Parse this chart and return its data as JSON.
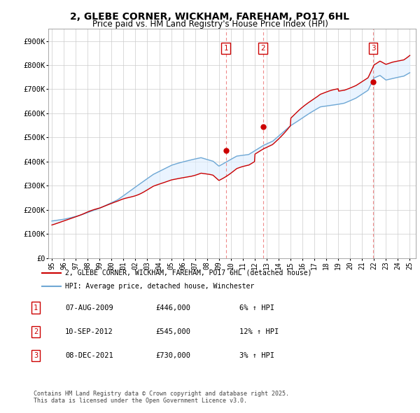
{
  "title": "2, GLEBE CORNER, WICKHAM, FAREHAM, PO17 6HL",
  "subtitle": "Price paid vs. HM Land Registry's House Price Index (HPI)",
  "ylim": [
    0,
    950000
  ],
  "yticks": [
    0,
    100000,
    200000,
    300000,
    400000,
    500000,
    600000,
    700000,
    800000,
    900000
  ],
  "ytick_labels": [
    "£0",
    "£100K",
    "£200K",
    "£300K",
    "£400K",
    "£500K",
    "£600K",
    "£700K",
    "£800K",
    "£900K"
  ],
  "hpi_color": "#6fa8d4",
  "hpi_fill_color": "#ddeeff",
  "price_color": "#cc0000",
  "sale_marker_color": "#cc0000",
  "annotation_box_color": "#cc0000",
  "vline_color": "#ee8888",
  "background_color": "#ffffff",
  "grid_color": "#cccccc",
  "sales": [
    {
      "date_num": 2009.58,
      "price": 446000,
      "label": "1"
    },
    {
      "date_num": 2012.7,
      "price": 545000,
      "label": "2"
    },
    {
      "date_num": 2021.92,
      "price": 730000,
      "label": "3"
    }
  ],
  "legend_property_label": "2, GLEBE CORNER, WICKHAM, FAREHAM, PO17 6HL (detached house)",
  "legend_hpi_label": "HPI: Average price, detached house, Winchester",
  "table_rows": [
    {
      "num": "1",
      "date": "07-AUG-2009",
      "price": "£446,000",
      "change": "6% ↑ HPI"
    },
    {
      "num": "2",
      "date": "10-SEP-2012",
      "price": "£545,000",
      "change": "12% ↑ HPI"
    },
    {
      "num": "3",
      "date": "08-DEC-2021",
      "price": "£730,000",
      "change": "3% ↑ HPI"
    }
  ],
  "footer": "Contains HM Land Registry data © Crown copyright and database right 2025.\nThis data is licensed under the Open Government Licence v3.0.",
  "xtick_years": [
    1995,
    1996,
    1997,
    1998,
    1999,
    2000,
    2001,
    2002,
    2003,
    2004,
    2005,
    2006,
    2007,
    2008,
    2009,
    2010,
    2011,
    2012,
    2013,
    2014,
    2015,
    2016,
    2017,
    2018,
    2019,
    2020,
    2021,
    2022,
    2023,
    2024,
    2025
  ],
  "xtick_labels": [
    "95",
    "96",
    "97",
    "98",
    "99",
    "00",
    "01",
    "02",
    "03",
    "04",
    "05",
    "06",
    "07",
    "08",
    "09",
    "10",
    "11",
    "12",
    "13",
    "14",
    "15",
    "16",
    "17",
    "18",
    "19",
    "20",
    "21",
    "22",
    "23",
    "24",
    "25"
  ]
}
